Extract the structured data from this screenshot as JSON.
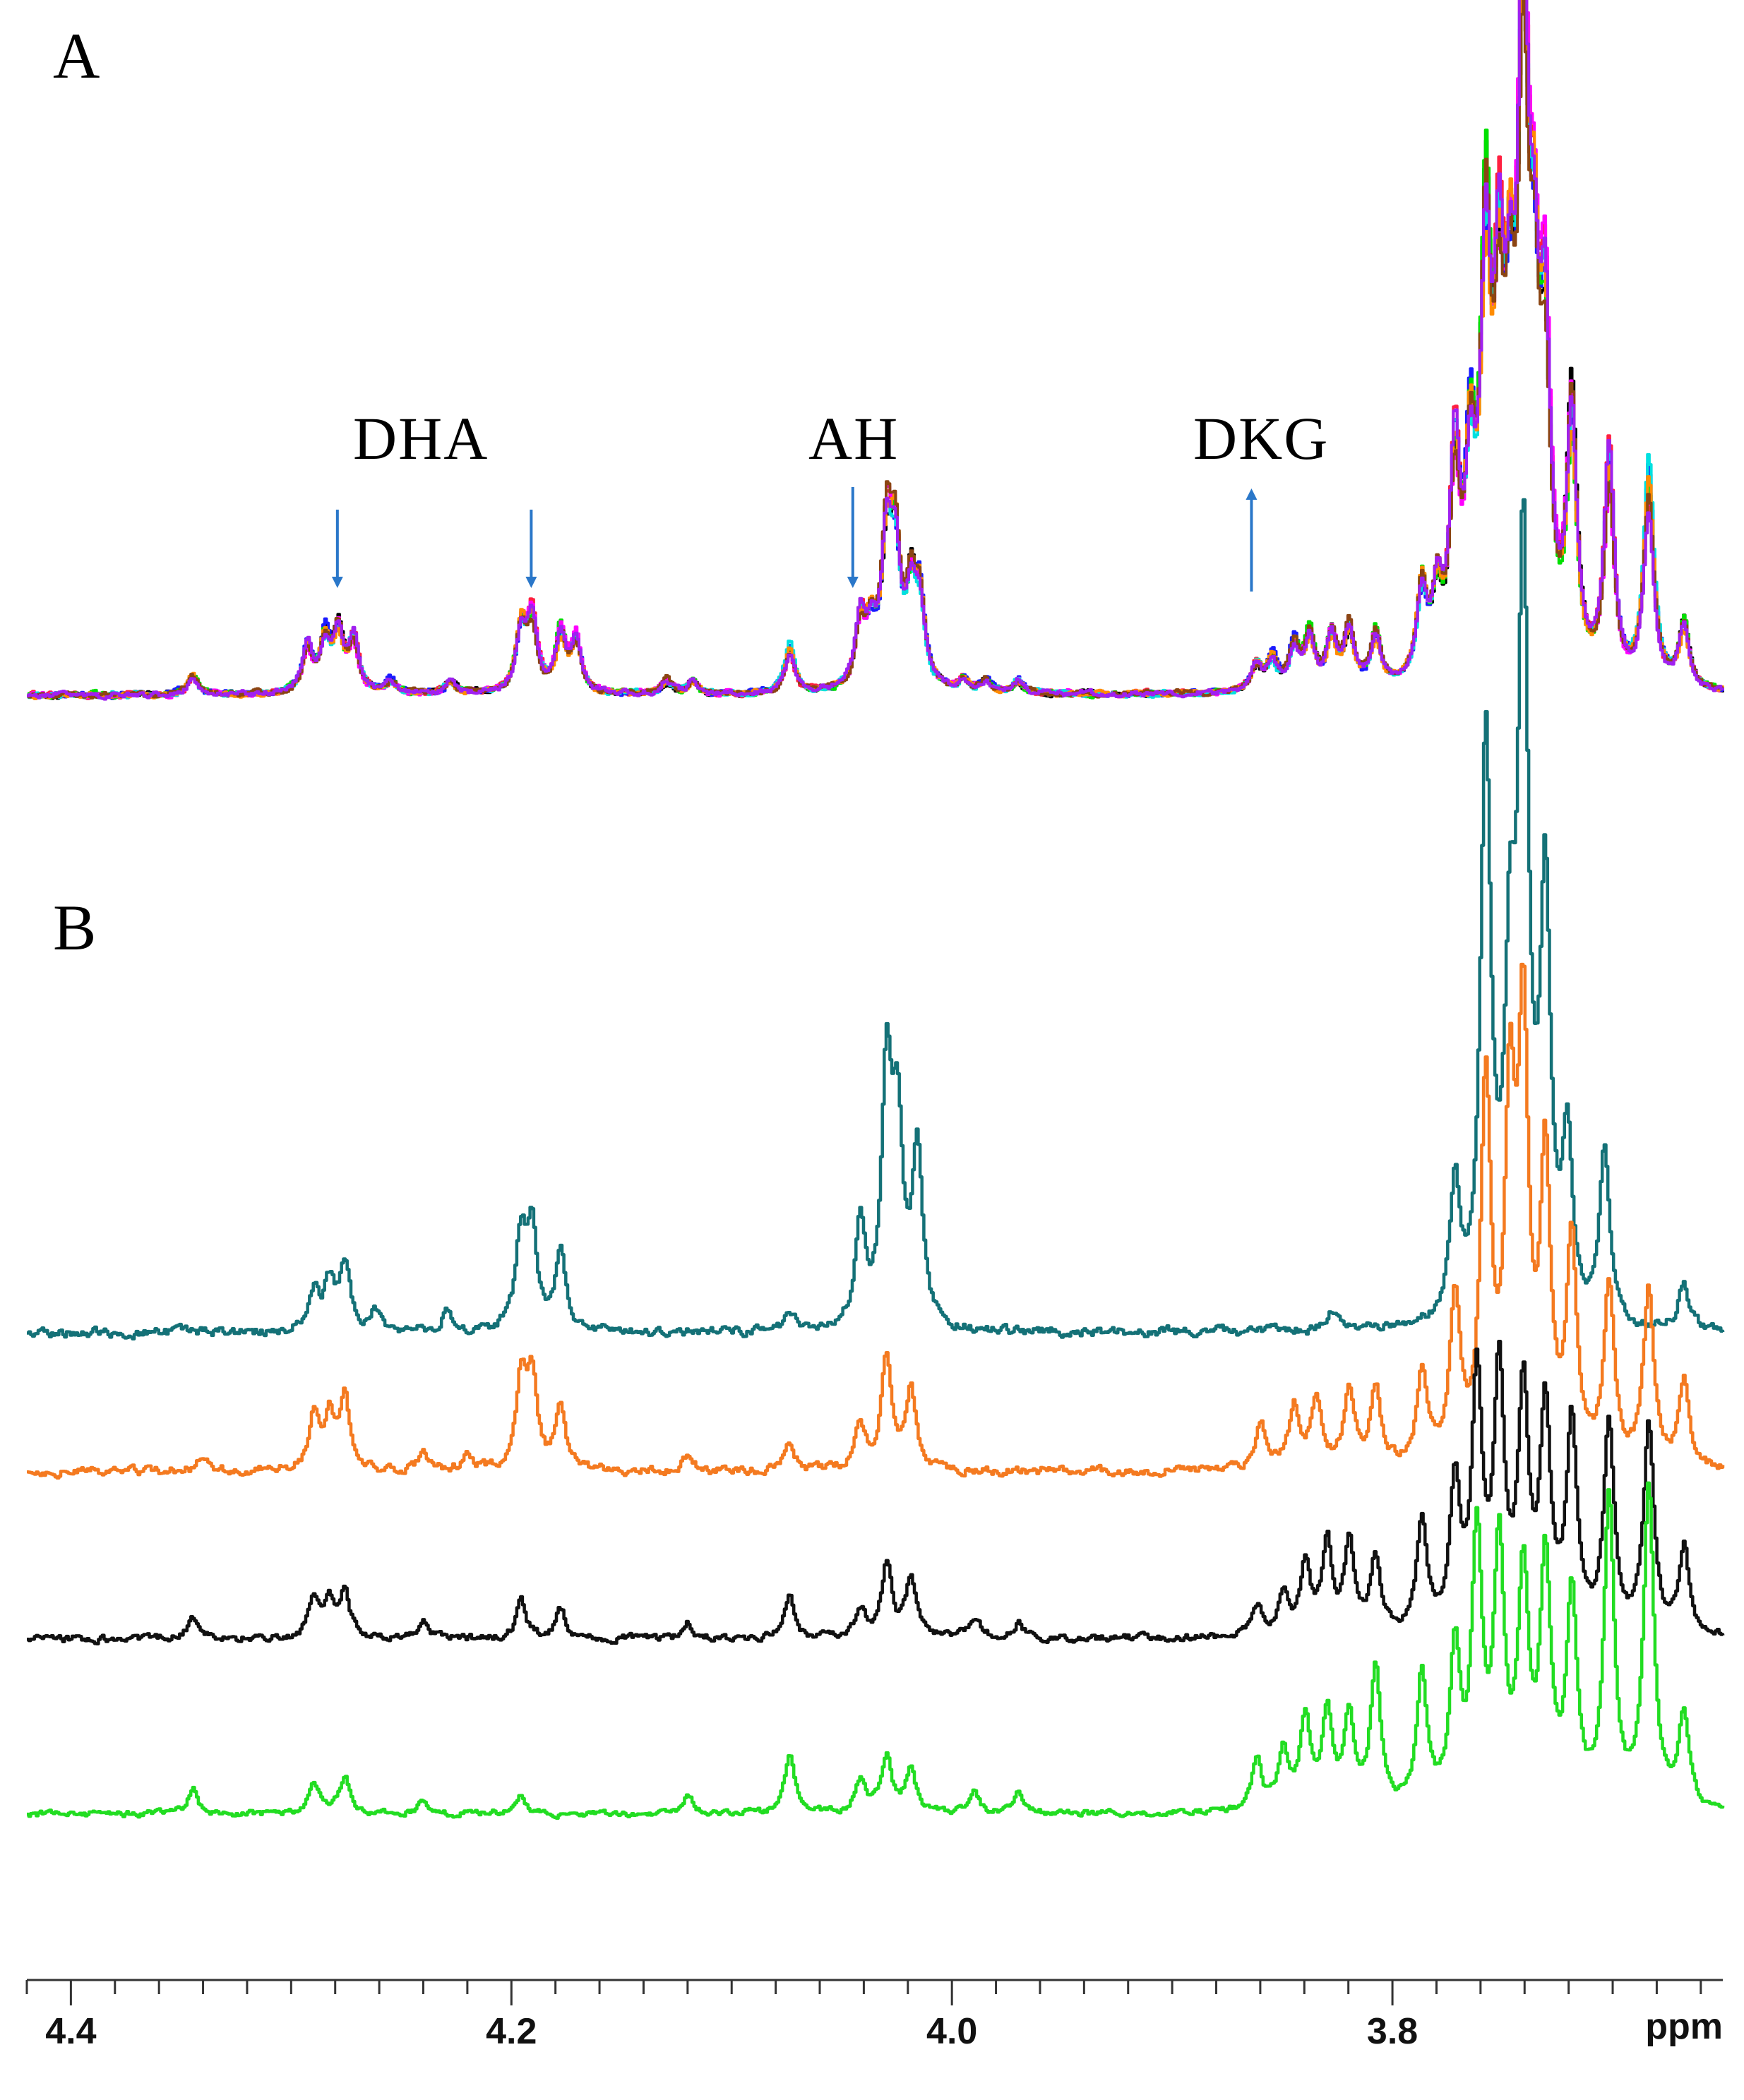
{
  "panels": [
    {
      "letter": "A"
    },
    {
      "letter": "B"
    }
  ],
  "annotations": [
    {
      "label": "DHA",
      "arrows": [
        4.279,
        4.191
      ],
      "direction": "down"
    },
    {
      "label": "AH",
      "arrows": [
        4.045
      ],
      "direction": "down"
    },
    {
      "label": "DKG",
      "arrows": [
        3.864
      ],
      "direction": "up"
    }
  ],
  "colors": {
    "arrow": "#2a77c9",
    "axis": "#333333"
  },
  "chart_data": {
    "type": "line",
    "title": "",
    "xlabel": "ppm",
    "ylabel": "",
    "xlim": [
      4.42,
      3.65
    ],
    "x_reversed": true,
    "x_ticks": [
      4.4,
      4.2,
      4.0,
      3.8
    ],
    "x_tick_labels": [
      "4.4",
      "4.2",
      "4.0",
      "3.8"
    ],
    "minor_tick_step": 0.02,
    "grid": false,
    "panel_A": {
      "description_colors": [
        "#000000",
        "#ff2040",
        "#1a1aff",
        "#00e000",
        "#ff00ff",
        "#00e0e0",
        "#ff8c00",
        "#8b4513",
        "#a020f0"
      ],
      "peaks": [
        {
          "x": 4.345,
          "h": 0.03
        },
        {
          "x": 4.293,
          "h": 0.07
        },
        {
          "x": 4.285,
          "h": 0.08
        },
        {
          "x": 4.279,
          "h": 0.09
        },
        {
          "x": 4.272,
          "h": 0.08
        },
        {
          "x": 4.255,
          "h": 0.02
        },
        {
          "x": 4.228,
          "h": 0.02
        },
        {
          "x": 4.196,
          "h": 0.1
        },
        {
          "x": 4.191,
          "h": 0.11
        },
        {
          "x": 4.178,
          "h": 0.09
        },
        {
          "x": 4.171,
          "h": 0.08
        },
        {
          "x": 4.13,
          "h": 0.02
        },
        {
          "x": 4.118,
          "h": 0.02
        },
        {
          "x": 4.074,
          "h": 0.07
        },
        {
          "x": 4.042,
          "h": 0.1
        },
        {
          "x": 4.037,
          "h": 0.08
        },
        {
          "x": 4.03,
          "h": 0.22
        },
        {
          "x": 4.026,
          "h": 0.2
        },
        {
          "x": 4.019,
          "h": 0.13
        },
        {
          "x": 4.015,
          "h": 0.13
        },
        {
          "x": 3.995,
          "h": 0.02
        },
        {
          "x": 3.985,
          "h": 0.02
        },
        {
          "x": 3.97,
          "h": 0.02
        },
        {
          "x": 3.862,
          "h": 0.04
        },
        {
          "x": 3.855,
          "h": 0.05
        },
        {
          "x": 3.845,
          "h": 0.07
        },
        {
          "x": 3.838,
          "h": 0.08
        },
        {
          "x": 3.828,
          "h": 0.08
        },
        {
          "x": 3.82,
          "h": 0.09
        },
        {
          "x": 3.808,
          "h": 0.08
        },
        {
          "x": 3.787,
          "h": 0.14
        },
        {
          "x": 3.78,
          "h": 0.12
        },
        {
          "x": 3.772,
          "h": 0.32
        },
        {
          "x": 3.765,
          "h": 0.3
        },
        {
          "x": 3.758,
          "h": 0.62
        },
        {
          "x": 3.752,
          "h": 0.48
        },
        {
          "x": 3.747,
          "h": 0.4
        },
        {
          "x": 3.741,
          "h": 1.0
        },
        {
          "x": 3.736,
          "h": 0.45
        },
        {
          "x": 3.731,
          "h": 0.46
        },
        {
          "x": 3.719,
          "h": 0.4
        },
        {
          "x": 3.702,
          "h": 0.34
        },
        {
          "x": 3.684,
          "h": 0.32
        },
        {
          "x": 3.668,
          "h": 0.1
        }
      ]
    },
    "series": [
      {
        "color": "#147177",
        "peaks": [
          {
            "x": 4.29,
            "h": 0.04
          },
          {
            "x": 4.283,
            "h": 0.05
          },
          {
            "x": 4.276,
            "h": 0.07
          },
          {
            "x": 4.262,
            "h": 0.02
          },
          {
            "x": 4.23,
            "h": 0.02
          },
          {
            "x": 4.196,
            "h": 0.1
          },
          {
            "x": 4.191,
            "h": 0.1
          },
          {
            "x": 4.178,
            "h": 0.08
          },
          {
            "x": 4.074,
            "h": 0.02
          },
          {
            "x": 4.042,
            "h": 0.11
          },
          {
            "x": 4.03,
            "h": 0.26
          },
          {
            "x": 4.025,
            "h": 0.2
          },
          {
            "x": 4.016,
            "h": 0.18
          },
          {
            "x": 3.828,
            "h": 0.02
          },
          {
            "x": 3.772,
            "h": 0.14
          },
          {
            "x": 3.758,
            "h": 0.6
          },
          {
            "x": 3.747,
            "h": 0.32
          },
          {
            "x": 3.741,
            "h": 0.78
          },
          {
            "x": 3.731,
            "h": 0.44
          },
          {
            "x": 3.721,
            "h": 0.18
          },
          {
            "x": 3.704,
            "h": 0.18
          },
          {
            "x": 3.668,
            "h": 0.05
          }
        ]
      },
      {
        "color": "#f47a20",
        "peaks": [
          {
            "x": 4.34,
            "h": 0.02
          },
          {
            "x": 4.29,
            "h": 0.06
          },
          {
            "x": 4.283,
            "h": 0.06
          },
          {
            "x": 4.276,
            "h": 0.08
          },
          {
            "x": 4.24,
            "h": 0.02
          },
          {
            "x": 4.22,
            "h": 0.02
          },
          {
            "x": 4.196,
            "h": 0.1
          },
          {
            "x": 4.191,
            "h": 0.1
          },
          {
            "x": 4.178,
            "h": 0.07
          },
          {
            "x": 4.12,
            "h": 0.02
          },
          {
            "x": 4.074,
            "h": 0.03
          },
          {
            "x": 4.042,
            "h": 0.05
          },
          {
            "x": 4.03,
            "h": 0.13
          },
          {
            "x": 4.019,
            "h": 0.09
          },
          {
            "x": 3.86,
            "h": 0.05
          },
          {
            "x": 3.845,
            "h": 0.07
          },
          {
            "x": 3.835,
            "h": 0.08
          },
          {
            "x": 3.82,
            "h": 0.09
          },
          {
            "x": 3.808,
            "h": 0.09
          },
          {
            "x": 3.787,
            "h": 0.1
          },
          {
            "x": 3.772,
            "h": 0.19
          },
          {
            "x": 3.758,
            "h": 0.42
          },
          {
            "x": 3.747,
            "h": 0.38
          },
          {
            "x": 3.741,
            "h": 0.48
          },
          {
            "x": 3.731,
            "h": 0.33
          },
          {
            "x": 3.719,
            "h": 0.25
          },
          {
            "x": 3.702,
            "h": 0.2
          },
          {
            "x": 3.684,
            "h": 0.2
          },
          {
            "x": 3.668,
            "h": 0.1
          }
        ]
      },
      {
        "color": "#111111",
        "peaks": [
          {
            "x": 4.345,
            "h": 0.03
          },
          {
            "x": 4.29,
            "h": 0.05
          },
          {
            "x": 4.283,
            "h": 0.05
          },
          {
            "x": 4.276,
            "h": 0.06
          },
          {
            "x": 4.24,
            "h": 0.02
          },
          {
            "x": 4.196,
            "h": 0.05
          },
          {
            "x": 4.178,
            "h": 0.04
          },
          {
            "x": 4.12,
            "h": 0.02
          },
          {
            "x": 4.074,
            "h": 0.06
          },
          {
            "x": 4.042,
            "h": 0.04
          },
          {
            "x": 4.03,
            "h": 0.1
          },
          {
            "x": 4.019,
            "h": 0.08
          },
          {
            "x": 3.99,
            "h": 0.03
          },
          {
            "x": 3.97,
            "h": 0.02
          },
          {
            "x": 3.862,
            "h": 0.04
          },
          {
            "x": 3.85,
            "h": 0.06
          },
          {
            "x": 3.84,
            "h": 0.09
          },
          {
            "x": 3.83,
            "h": 0.12
          },
          {
            "x": 3.82,
            "h": 0.12
          },
          {
            "x": 3.808,
            "h": 0.1
          },
          {
            "x": 3.787,
            "h": 0.15
          },
          {
            "x": 3.772,
            "h": 0.2
          },
          {
            "x": 3.762,
            "h": 0.34
          },
          {
            "x": 3.752,
            "h": 0.34
          },
          {
            "x": 3.741,
            "h": 0.32
          },
          {
            "x": 3.731,
            "h": 0.3
          },
          {
            "x": 3.719,
            "h": 0.28
          },
          {
            "x": 3.702,
            "h": 0.28
          },
          {
            "x": 3.684,
            "h": 0.28
          },
          {
            "x": 3.668,
            "h": 0.12
          }
        ]
      },
      {
        "color": "#22dd22",
        "peaks": [
          {
            "x": 4.345,
            "h": 0.04
          },
          {
            "x": 4.29,
            "h": 0.05
          },
          {
            "x": 4.276,
            "h": 0.06
          },
          {
            "x": 4.24,
            "h": 0.02
          },
          {
            "x": 4.196,
            "h": 0.03
          },
          {
            "x": 4.12,
            "h": 0.03
          },
          {
            "x": 4.074,
            "h": 0.09
          },
          {
            "x": 4.042,
            "h": 0.05
          },
          {
            "x": 4.03,
            "h": 0.09
          },
          {
            "x": 4.019,
            "h": 0.07
          },
          {
            "x": 3.99,
            "h": 0.03
          },
          {
            "x": 3.97,
            "h": 0.03
          },
          {
            "x": 3.862,
            "h": 0.08
          },
          {
            "x": 3.85,
            "h": 0.09
          },
          {
            "x": 3.84,
            "h": 0.14
          },
          {
            "x": 3.83,
            "h": 0.15
          },
          {
            "x": 3.82,
            "h": 0.14
          },
          {
            "x": 3.808,
            "h": 0.22
          },
          {
            "x": 3.787,
            "h": 0.21
          },
          {
            "x": 3.772,
            "h": 0.24
          },
          {
            "x": 3.762,
            "h": 0.42
          },
          {
            "x": 3.752,
            "h": 0.4
          },
          {
            "x": 3.741,
            "h": 0.36
          },
          {
            "x": 3.731,
            "h": 0.38
          },
          {
            "x": 3.719,
            "h": 0.33
          },
          {
            "x": 3.702,
            "h": 0.48
          },
          {
            "x": 3.684,
            "h": 0.5
          },
          {
            "x": 3.668,
            "h": 0.15
          }
        ]
      }
    ]
  }
}
